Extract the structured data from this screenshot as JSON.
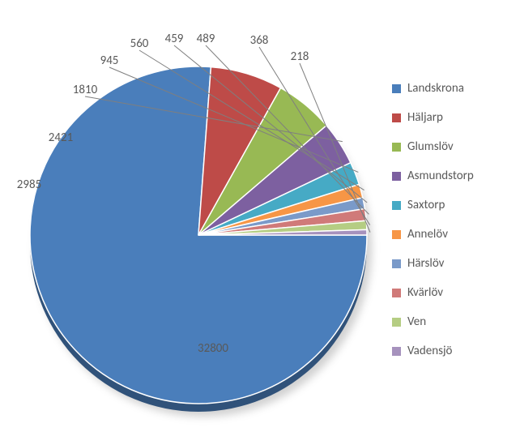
{
  "chart": {
    "type": "pie",
    "background_color": "#ffffff",
    "label_fontsize": 15,
    "label_color": "#595959",
    "legend_fontsize": 15,
    "legend_color": "#595959",
    "series": [
      {
        "name": "Landskrona",
        "value": 32800,
        "color": "#4a7ebb"
      },
      {
        "name": "Häljarp",
        "value": 2985,
        "color": "#be4b48"
      },
      {
        "name": "Glumslöv",
        "value": 2421,
        "color": "#98b954"
      },
      {
        "name": "Asmundstorp",
        "value": 1810,
        "color": "#7d60a0"
      },
      {
        "name": "Saxtorp",
        "value": 945,
        "color": "#46aac5"
      },
      {
        "name": "Annelöv",
        "value": 560,
        "color": "#f79646"
      },
      {
        "name": "Härslöv",
        "value": 459,
        "color": "#7a9ac9"
      },
      {
        "name": "Kvärlöv",
        "value": 489,
        "color": "#d07a79"
      },
      {
        "name": "Ven",
        "value": 368,
        "color": "#b5cd83"
      },
      {
        "name": "Vadensjö",
        "value": 218,
        "color": "#a692bd"
      }
    ]
  }
}
